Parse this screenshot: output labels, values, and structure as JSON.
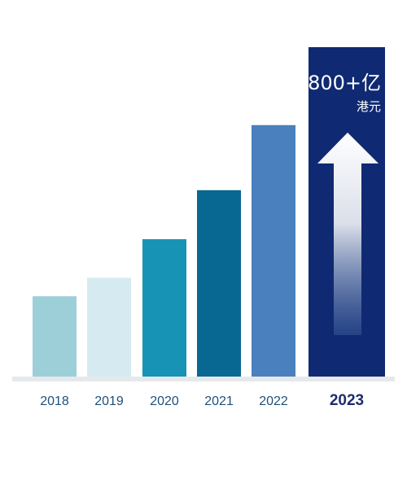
{
  "chart_data": {
    "type": "bar",
    "title": "",
    "xlabel": "",
    "ylabel": "",
    "categories": [
      "2018",
      "2019",
      "2020",
      "2021",
      "2022",
      "2023"
    ],
    "values": [
      100,
      123,
      171,
      232,
      313,
      410
    ],
    "ylim": [
      0,
      410
    ],
    "grid": false,
    "legend": "none",
    "bar_colors": [
      "#9ccfd8",
      "#d6ebf1",
      "#1693b5",
      "#086892",
      "#4a80bd",
      "#0f2a72"
    ],
    "baseline_color": "#e6e9ec",
    "highlight": {
      "category": "2023",
      "value_label": "800+亿",
      "unit_label": "港元",
      "arrow": "up-arrow-icon"
    }
  }
}
